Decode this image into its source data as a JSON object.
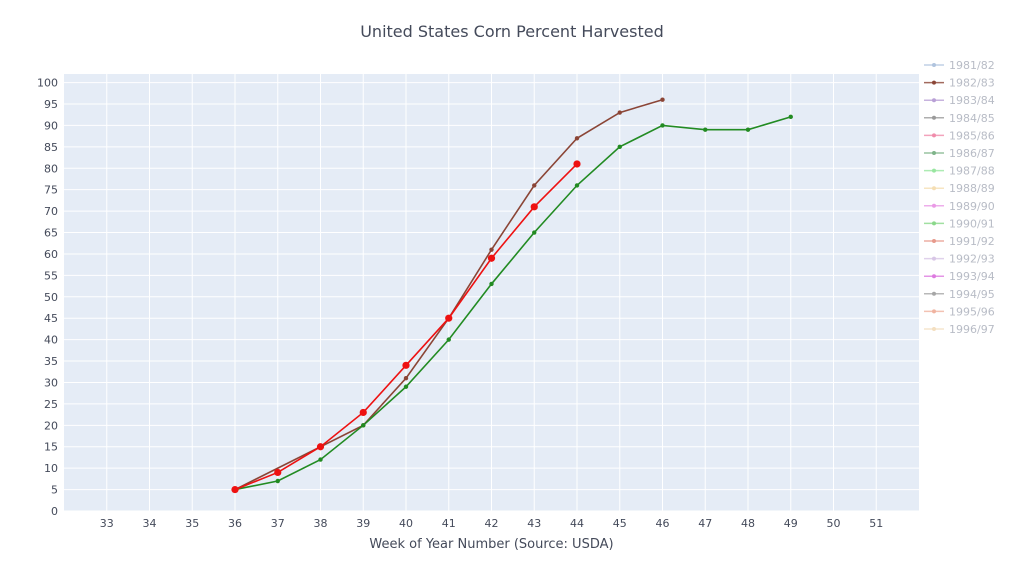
{
  "chart_data": {
    "type": "line",
    "title": "United States Corn Percent Harvested",
    "xlabel": "Week of Year Number     (Source: USDA)",
    "ylabel": "",
    "xlim": [
      32,
      52
    ],
    "ylim": [
      0,
      102
    ],
    "xticks": [
      33,
      34,
      35,
      36,
      37,
      38,
      39,
      40,
      41,
      42,
      43,
      44,
      45,
      46,
      47,
      48,
      49,
      50,
      51
    ],
    "yticks": [
      0,
      5,
      10,
      15,
      20,
      25,
      30,
      35,
      40,
      45,
      50,
      55,
      60,
      65,
      70,
      75,
      80,
      85,
      90,
      95,
      100
    ],
    "grid": true,
    "legend_position": "right",
    "plot_background": "#e5ecf6",
    "series": [
      {
        "name": "1981/82",
        "color": "#b0c4de",
        "x": [],
        "y": []
      },
      {
        "name": "1982/83",
        "color": "#8b4536",
        "x": [
          36,
          39,
          40,
          41,
          42,
          43,
          44,
          45,
          46
        ],
        "y": [
          5,
          20,
          31,
          45,
          61,
          76,
          87,
          93,
          96
        ]
      },
      {
        "name": "1983/84",
        "color": "#b9a0d6",
        "x": [],
        "y": []
      },
      {
        "name": "1984/85",
        "color": "#9a9a9a",
        "x": [],
        "y": []
      },
      {
        "name": "1985/86",
        "color": "#f08cab",
        "x": [],
        "y": []
      },
      {
        "name": "1986/87",
        "color": "#7fb48a",
        "x": [],
        "y": []
      },
      {
        "name": "1987/88",
        "color": "#98e6a0",
        "x": [],
        "y": []
      },
      {
        "name": "1988/89",
        "color": "#f5deb3",
        "x": [],
        "y": []
      },
      {
        "name": "1989/90",
        "color": "#ea9ae6",
        "x": [],
        "y": []
      },
      {
        "name": "1990/91",
        "color": "#8ad88a",
        "x": [],
        "y": []
      },
      {
        "name": "1991/92",
        "color": "#e79a8c",
        "x": [],
        "y": []
      },
      {
        "name": "1992/93",
        "color": "#d8c6e6",
        "x": [],
        "y": []
      },
      {
        "name": "1993/94",
        "color": "#dd7ae0",
        "x": [],
        "y": []
      },
      {
        "name": "1994/95",
        "color": "#a6a6a6",
        "x": [],
        "y": []
      },
      {
        "name": "1995/96",
        "color": "#f0b3a0",
        "x": [],
        "y": []
      },
      {
        "name": "1996/97",
        "color": "#f4dfc0",
        "x": [],
        "y": []
      },
      {
        "name": "",
        "color": "#228b22",
        "x": [
          36,
          37,
          38,
          39,
          40,
          41,
          42,
          43,
          44,
          45,
          46,
          47,
          48,
          49
        ],
        "y": [
          5,
          7,
          12,
          20,
          29,
          40,
          53,
          65,
          76,
          85,
          90,
          89,
          89,
          92
        ]
      },
      {
        "name": "",
        "color": "#ee1111",
        "x": [
          36,
          37,
          38,
          39,
          40,
          41,
          42,
          43,
          44
        ],
        "y": [
          5,
          9,
          15,
          23,
          34,
          45,
          59,
          71,
          81
        ]
      }
    ]
  }
}
